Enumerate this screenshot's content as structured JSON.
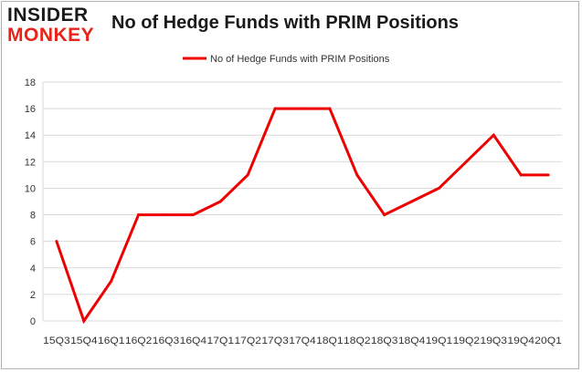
{
  "logo": {
    "line1": "INSIDER",
    "line2": "MONKEY"
  },
  "chart_data": {
    "type": "line",
    "title": "No of Hedge Funds with PRIM Positions",
    "xlabel": "",
    "ylabel": "",
    "categories": [
      "15Q3",
      "15Q4",
      "16Q1",
      "16Q2",
      "16Q3",
      "16Q4",
      "17Q1",
      "17Q2",
      "17Q3",
      "17Q4",
      "18Q1",
      "18Q2",
      "18Q3",
      "18Q4",
      "19Q1",
      "19Q2",
      "19Q3",
      "19Q4",
      "20Q1"
    ],
    "series": [
      {
        "name": "No of Hedge Funds with PRIM Positions",
        "values": [
          6,
          0,
          3,
          8,
          8,
          8,
          9,
          11,
          16,
          16,
          16,
          11,
          8,
          9,
          10,
          12,
          14,
          11,
          11
        ],
        "color": "#ee0000"
      }
    ],
    "ylim": [
      0,
      18
    ],
    "yticks": [
      0,
      2,
      4,
      6,
      8,
      10,
      12,
      14,
      16,
      18
    ],
    "grid": true,
    "legend": "top-center"
  }
}
